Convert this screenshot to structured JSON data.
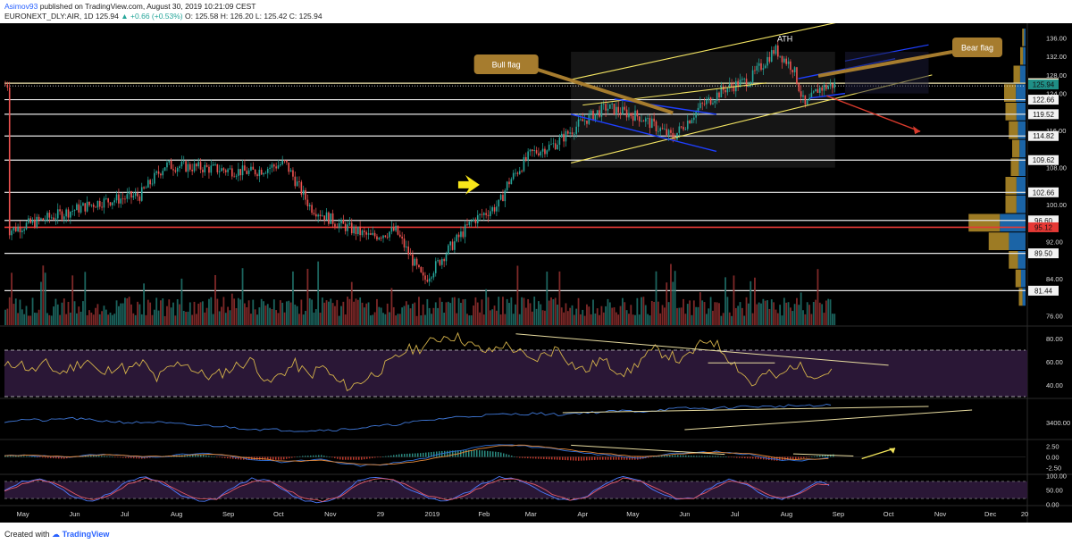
{
  "header": {
    "author": "Asimov93",
    "published_text": "published on TradingView.com, August 30, 2019 10:21:09 CEST",
    "symbol": "EURONEXT_DLY:AIR, 1D",
    "last": "125.94",
    "change": "▲ +0.66 (+0.53%)",
    "ohlc": "O: 125.58 H: 126.20 L: 125.42 C: 125.94"
  },
  "footer": {
    "created_with": "Created with",
    "brand": "TradingView"
  },
  "colors": {
    "background": "#000000",
    "up": "#26a69a",
    "down": "#ef5350",
    "level_line": "#e6e6e6",
    "red_level": "#e53935",
    "channel": "#f5e663",
    "flag_channel": "#1e3fff",
    "annotation_box": "#a67c2e",
    "rsi_line": "#d4b24a",
    "rsi_fill": "#2a1736",
    "macd_line": "#2f6fd6",
    "signal_line": "#e58a3a",
    "stoch_k": "#4d7cff",
    "stoch_d": "#e35a6a"
  },
  "annotations": {
    "ath": "ATH",
    "bull_flag": "Bull flag",
    "bear_flag": "Bear flag",
    "arrow_icon": "right-arrow-icon"
  },
  "chart_data": [
    {
      "type": "candlestick",
      "title": "EURONEXT_DLY:AIR, 1D",
      "x_labels": [
        "May",
        "Jun",
        "Jul",
        "Aug",
        "Sep",
        "Oct",
        "Nov",
        "29",
        "2019",
        "Feb",
        "Mar",
        "Apr",
        "May",
        "Jun",
        "Jul",
        "Aug",
        "Sep",
        "Oct",
        "Nov",
        "Dec",
        "20"
      ],
      "y_ticks": [
        76.0,
        84.0,
        92.0,
        100.0,
        108.0,
        116.0,
        124.0,
        128.0,
        132.0,
        136.0
      ],
      "ylim": [
        74,
        138
      ],
      "price_points": [
        {
          "date": "2018-04-23",
          "close": 94.5
        },
        {
          "date": "2018-05-15",
          "close": 97.0
        },
        {
          "date": "2018-06-15",
          "close": 100.5
        },
        {
          "date": "2018-07-10",
          "close": 102.0
        },
        {
          "date": "2018-07-25",
          "close": 108.5
        },
        {
          "date": "2018-08-15",
          "close": 108.0
        },
        {
          "date": "2018-09-15",
          "close": 107.0
        },
        {
          "date": "2018-10-05",
          "close": 109.0
        },
        {
          "date": "2018-10-20",
          "close": 99.5
        },
        {
          "date": "2018-11-05",
          "close": 96.0
        },
        {
          "date": "2018-11-25",
          "close": 93.0
        },
        {
          "date": "2018-12-10",
          "close": 94.5
        },
        {
          "date": "2018-12-27",
          "close": 83.5
        },
        {
          "date": "2019-01-10",
          "close": 90.0
        },
        {
          "date": "2019-01-25",
          "close": 96.5
        },
        {
          "date": "2019-02-10",
          "close": 100.0
        },
        {
          "date": "2019-02-15",
          "close": 104.5
        },
        {
          "date": "2019-03-01",
          "close": 111.0
        },
        {
          "date": "2019-03-15",
          "close": 113.0
        },
        {
          "date": "2019-04-01",
          "close": 118.0
        },
        {
          "date": "2019-04-15",
          "close": 121.0
        },
        {
          "date": "2019-05-05",
          "close": 119.0
        },
        {
          "date": "2019-05-25",
          "close": 114.5
        },
        {
          "date": "2019-06-10",
          "close": 121.0
        },
        {
          "date": "2019-06-25",
          "close": 125.0
        },
        {
          "date": "2019-07-10",
          "close": 127.0
        },
        {
          "date": "2019-07-25",
          "close": 133.5
        },
        {
          "date": "2019-08-05",
          "close": 129.5
        },
        {
          "date": "2019-08-12",
          "close": 121.0
        },
        {
          "date": "2019-08-20",
          "close": 125.0
        },
        {
          "date": "2019-08-30",
          "close": 125.94
        }
      ],
      "levels": [
        {
          "value": 126.22,
          "label": "126.22",
          "style": "highlight-yellow"
        },
        {
          "value": 125.94,
          "label": "125.94",
          "style": "current-teal"
        },
        {
          "value": 122.66,
          "label": "122.66",
          "style": "white"
        },
        {
          "value": 119.52,
          "label": "119.52",
          "style": "white"
        },
        {
          "value": 114.82,
          "label": "114.82",
          "style": "white"
        },
        {
          "value": 109.62,
          "label": "109.62",
          "style": "white"
        },
        {
          "value": 102.66,
          "label": "102.66",
          "style": "white"
        },
        {
          "value": 96.6,
          "label": "96.60",
          "style": "white"
        },
        {
          "value": 95.12,
          "label": "95.12",
          "style": "red"
        },
        {
          "value": 89.5,
          "label": "89.50",
          "style": "white"
        },
        {
          "value": 81.44,
          "label": "81.44",
          "style": "white"
        }
      ],
      "volume_profile": [
        {
          "price": 136,
          "size": 0.05
        },
        {
          "price": 132,
          "size": 0.08
        },
        {
          "price": 128,
          "size": 0.18
        },
        {
          "price": 124,
          "size": 0.32
        },
        {
          "price": 120,
          "size": 0.3
        },
        {
          "price": 116,
          "size": 0.25
        },
        {
          "price": 112,
          "size": 0.2
        },
        {
          "price": 108,
          "size": 0.22
        },
        {
          "price": 104,
          "size": 0.3
        },
        {
          "price": 100,
          "size": 0.3
        },
        {
          "price": 96,
          "size": 0.85
        },
        {
          "price": 92,
          "size": 0.55
        },
        {
          "price": 88,
          "size": 0.25
        },
        {
          "price": 84,
          "size": 0.15
        },
        {
          "price": 80,
          "size": 0.1
        }
      ]
    },
    {
      "type": "line",
      "title": "RSI",
      "y_ticks": [
        40.0,
        60.0,
        80.0
      ],
      "ylim": [
        30,
        90
      ],
      "bands": [
        70,
        30
      ],
      "series": [
        {
          "values": [
            55,
            60,
            52,
            58,
            50,
            56,
            62,
            48,
            57,
            53,
            59,
            45,
            55,
            60,
            50,
            47,
            52,
            58,
            61,
            40,
            50,
            58,
            48,
            56,
            43,
            38,
            45,
            52,
            60,
            70,
            72,
            78,
            83,
            80,
            72,
            68,
            75,
            70,
            60,
            66,
            72,
            58,
            52,
            62,
            55,
            50,
            62,
            70,
            66,
            60,
            72,
            80,
            68,
            55,
            40,
            50,
            46,
            58,
            52,
            48,
            56
          ]
        }
      ]
    },
    {
      "type": "line",
      "title": "Volume indicator",
      "y_ticks": [
        3400.0
      ],
      "series": [
        {
          "values": [
            42,
            45,
            43,
            47,
            44,
            42,
            40,
            41,
            38,
            36,
            35,
            32,
            30,
            29,
            28,
            29,
            30,
            33,
            36,
            40,
            44,
            48,
            50,
            52,
            53,
            54,
            52,
            55,
            56,
            58,
            57,
            60,
            62,
            61,
            63,
            65,
            64,
            66,
            65,
            67
          ]
        }
      ]
    },
    {
      "type": "line",
      "title": "MACD",
      "y_ticks": [
        2.5,
        0.0,
        -2.5
      ],
      "ylim": [
        -4,
        4
      ],
      "series": [
        {
          "name": "MACD",
          "values": [
            0.3,
            0.5,
            0.2,
            -0.2,
            0.4,
            0.6,
            0.3,
            -0.1,
            0.2,
            0.5,
            0.8,
            0.4,
            -0.3,
            -0.8,
            -1.2,
            -0.9,
            -0.6,
            -1.5,
            -2.0,
            -1.8,
            -1.2,
            -0.5,
            0.5,
            1.5,
            2.5,
            3.0,
            2.6,
            2.2,
            1.6,
            1.0,
            0.6,
            0.2,
            -0.2,
            0.3,
            0.8,
            1.0,
            1.2,
            0.8,
            0.4,
            -0.6,
            -0.9,
            -0.4,
            0.1
          ]
        },
        {
          "name": "Signal",
          "values": [
            0.2,
            0.4,
            0.3,
            0.0,
            0.2,
            0.5,
            0.4,
            0.1,
            0.1,
            0.3,
            0.6,
            0.5,
            0.0,
            -0.5,
            -0.9,
            -1.0,
            -0.8,
            -1.2,
            -1.7,
            -1.8,
            -1.5,
            -0.9,
            -0.1,
            0.8,
            1.8,
            2.5,
            2.7,
            2.4,
            1.9,
            1.4,
            0.9,
            0.5,
            0.1,
            0.2,
            0.6,
            0.9,
            1.1,
            0.9,
            0.6,
            -0.2,
            -0.6,
            -0.5,
            -0.2
          ]
        }
      ]
    },
    {
      "type": "line",
      "title": "Stochastic RSI",
      "y_ticks": [
        100.0,
        50.0,
        0.0
      ],
      "ylim": [
        -5,
        105
      ],
      "series": [
        {
          "name": "K",
          "values": [
            50,
            80,
            90,
            60,
            20,
            10,
            40,
            85,
            95,
            70,
            30,
            10,
            20,
            60,
            90,
            80,
            40,
            10,
            5,
            30,
            80,
            95,
            85,
            50,
            20,
            10,
            35,
            70,
            95,
            90,
            60,
            25,
            10,
            30,
            75,
            95,
            80,
            40,
            15,
            20,
            60,
            90,
            70,
            30,
            15,
            40,
            80,
            60
          ]
        },
        {
          "name": "D",
          "values": [
            45,
            70,
            85,
            70,
            35,
            15,
            30,
            70,
            90,
            78,
            40,
            18,
            18,
            50,
            80,
            82,
            50,
            20,
            10,
            25,
            70,
            90,
            88,
            60,
            28,
            15,
            30,
            60,
            88,
            90,
            70,
            35,
            15,
            25,
            65,
            90,
            82,
            50,
            22,
            20,
            50,
            82,
            75,
            40,
            20,
            35,
            70,
            65
          ]
        }
      ]
    }
  ]
}
